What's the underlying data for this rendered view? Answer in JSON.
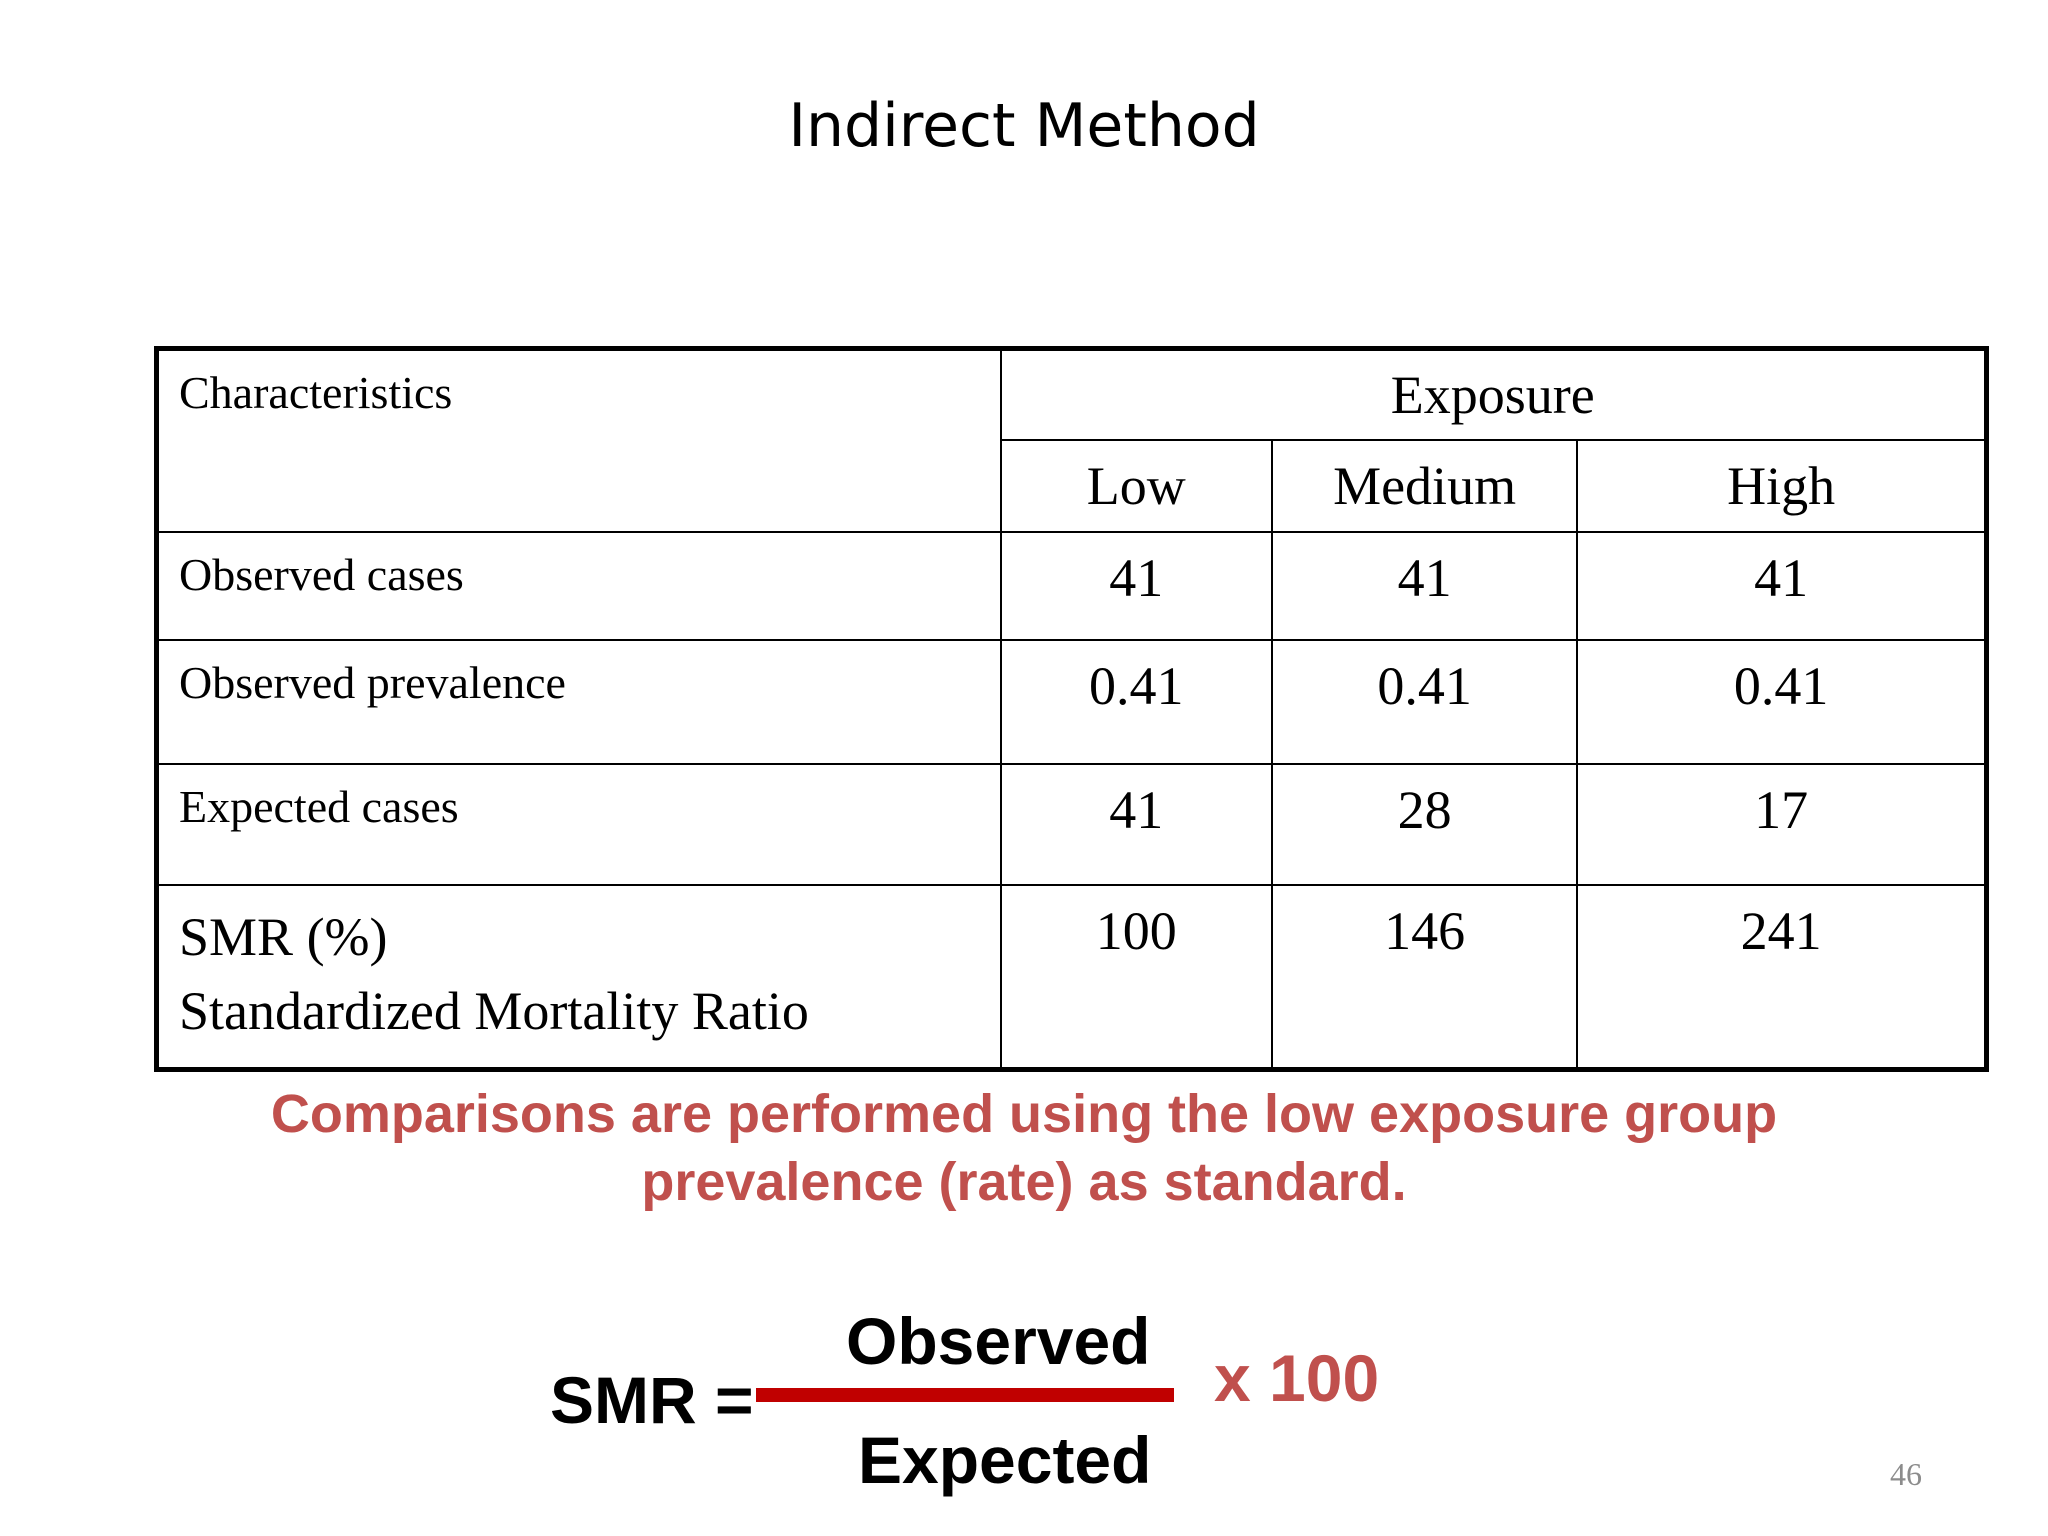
{
  "slide": {
    "title": "Indirect Method",
    "page_number": "46"
  },
  "table": {
    "corner_label": "Characteristics",
    "group_header": "Exposure",
    "levels": [
      "Low",
      "Medium",
      "High"
    ],
    "rows": [
      {
        "label": "Observed cases",
        "values": [
          "41",
          "41",
          "41"
        ]
      },
      {
        "label": "Observed prevalence",
        "values": [
          "0.41",
          "0.41",
          "0.41"
        ]
      },
      {
        "label": "Expected cases",
        "values": [
          "41",
          "28",
          "17"
        ]
      },
      {
        "label": "SMR (%)",
        "sublabel": "Standardized Mortality Ratio",
        "values": [
          "100",
          "146",
          "241"
        ]
      }
    ]
  },
  "note": {
    "line1": "Comparisons are performed using the low exposure group",
    "line2": "prevalence (rate) as standard."
  },
  "formula": {
    "lhs": "SMR =",
    "numerator": "Observed",
    "denominator": "Expected",
    "multiplier": "x 100"
  },
  "colors": {
    "accent_text": "#c0504d",
    "fraction_bar": "#c00000"
  }
}
